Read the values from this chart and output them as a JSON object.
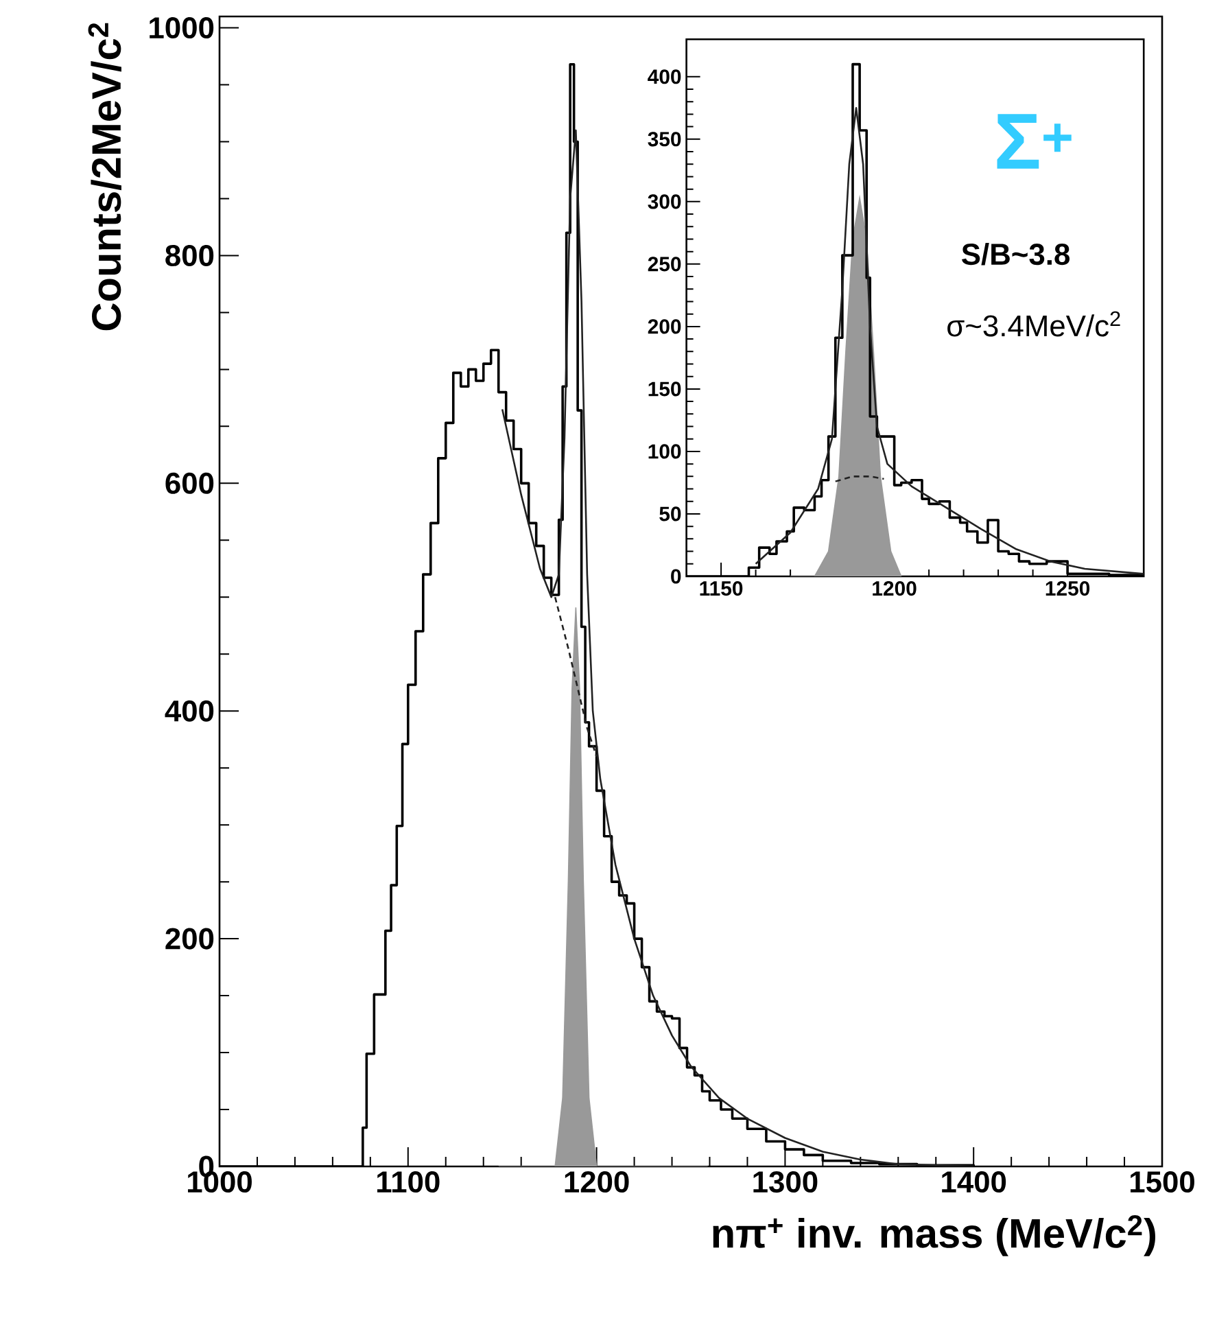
{
  "chart_data": [
    {
      "type": "line",
      "xlabel": "nπ$^{+}$ inv. mass (MeV/c$^{2}$)",
      "ylabel": "Counts/2MeV/c$^{2}$",
      "series": [
        {
          "type": "area",
          "color": "#999999",
          "x": [
            1148,
            1178,
            1182,
            1185,
            1187,
            1189,
            1191,
            1193,
            1196,
            1200,
            1259
          ],
          "values": [
            0,
            0,
            60,
            250,
            420,
            491,
            420,
            250,
            60,
            0,
            0
          ]
        },
        {
          "type": "step",
          "color": "#000000",
          "x": [
            1000,
            1076,
            1078,
            1082,
            1088,
            1091,
            1094,
            1097,
            1100,
            1104,
            1108,
            1112,
            1116,
            1120,
            1124,
            1128,
            1132,
            1136,
            1140,
            1144,
            1148,
            1152,
            1156,
            1160,
            1164,
            1168,
            1172,
            1176,
            1180,
            1182,
            1184,
            1186,
            1188,
            1190,
            1192,
            1194,
            1196,
            1200,
            1204,
            1208,
            1212,
            1216,
            1220,
            1224,
            1228,
            1232,
            1236,
            1240,
            1244,
            1248,
            1252,
            1256,
            1260,
            1266,
            1272,
            1280,
            1290,
            1300,
            1310,
            1320,
            1335,
            1350,
            1370,
            1400
          ],
          "values": [
            0,
            34,
            99,
            151,
            207,
            247,
            299,
            371,
            423,
            470,
            520,
            565,
            622,
            653,
            697,
            685,
            700,
            690,
            705,
            717,
            680,
            655,
            630,
            600,
            565,
            545,
            517,
            502,
            568,
            685,
            820,
            968,
            900,
            664,
            474,
            390,
            369,
            330,
            290,
            250,
            238,
            231,
            200,
            175,
            145,
            136,
            132,
            130,
            104,
            87,
            80,
            66,
            58,
            50,
            42,
            33,
            22,
            15,
            10,
            5,
            3,
            2,
            1,
            0
          ]
        },
        {
          "type": "line",
          "color": "#222222",
          "x": [
            1150,
            1160,
            1170,
            1176,
            1180,
            1183,
            1186,
            1189,
            1192,
            1195,
            1198,
            1202,
            1210,
            1220,
            1230,
            1240,
            1250,
            1265,
            1280,
            1300,
            1320,
            1340,
            1360,
            1400
          ],
          "values": [
            665,
            590,
            525,
            500,
            520,
            640,
            850,
            910,
            760,
            520,
            400,
            340,
            265,
            200,
            150,
            115,
            88,
            60,
            42,
            25,
            13,
            6,
            2,
            0
          ]
        },
        {
          "type": "line",
          "line_style": "dashed",
          "color": "#222222",
          "x": [
            1178,
            1185,
            1190,
            1195,
            1200
          ],
          "values": [
            500,
            455,
            420,
            385,
            360
          ]
        }
      ],
      "xlim": [
        1000,
        1500
      ],
      "ylim": [
        0,
        1010
      ],
      "xticks": [
        1000,
        1100,
        1200,
        1300,
        1400,
        1500
      ],
      "yticks": [
        0,
        200,
        400,
        600,
        800,
        1000
      ]
    },
    {
      "type": "line",
      "series": [
        {
          "type": "area",
          "color": "#999999",
          "x": [
            1170,
            1177,
            1181,
            1184,
            1186,
            1188,
            1190,
            1192,
            1194,
            1196,
            1199,
            1202
          ],
          "values": [
            0,
            0,
            20,
            80,
            180,
            270,
            303,
            270,
            180,
            80,
            20,
            0
          ]
        },
        {
          "type": "step",
          "color": "#000000",
          "x": [
            1140,
            1158,
            1161,
            1164,
            1166,
            1169,
            1171,
            1174,
            1177,
            1179,
            1181,
            1183,
            1185,
            1188,
            1190,
            1192,
            1193,
            1195,
            1200,
            1202,
            1205,
            1208,
            1210,
            1213,
            1216,
            1219,
            1221,
            1224,
            1227,
            1230,
            1233,
            1236,
            1239,
            1244,
            1250,
            1262,
            1272
          ],
          "values": [
            0,
            7,
            23,
            18,
            28,
            36,
            55,
            53,
            64,
            77,
            112,
            191,
            257,
            410,
            357,
            239,
            128,
            112,
            73,
            75,
            77,
            62,
            58,
            60,
            47,
            43,
            36,
            27,
            45,
            20,
            18,
            12,
            10,
            12,
            2,
            1,
            1
          ]
        },
        {
          "type": "line",
          "color": "#222222",
          "x": [
            1160,
            1170,
            1178,
            1182,
            1185,
            1187,
            1189,
            1191,
            1193,
            1195,
            1198,
            1205,
            1215,
            1225,
            1235,
            1245,
            1255,
            1272
          ],
          "values": [
            10,
            35,
            70,
            110,
            230,
            330,
            375,
            330,
            200,
            120,
            90,
            72,
            55,
            38,
            22,
            12,
            6,
            2
          ]
        },
        {
          "type": "line",
          "line_style": "dashed",
          "color": "#222222",
          "x": [
            1183,
            1188,
            1193,
            1197
          ],
          "values": [
            76,
            80,
            80,
            78
          ]
        }
      ],
      "annotations": [
        "Σ$^{+}$",
        "S/B~3.8",
        "σ~3.4MeV/c$^{2}$"
      ],
      "xlim": [
        1140,
        1272
      ],
      "ylim": [
        0,
        430
      ],
      "xticks": [
        1150,
        1200,
        1250
      ],
      "yticks": [
        0,
        50,
        100,
        150,
        200,
        250,
        300,
        350,
        400
      ]
    }
  ]
}
